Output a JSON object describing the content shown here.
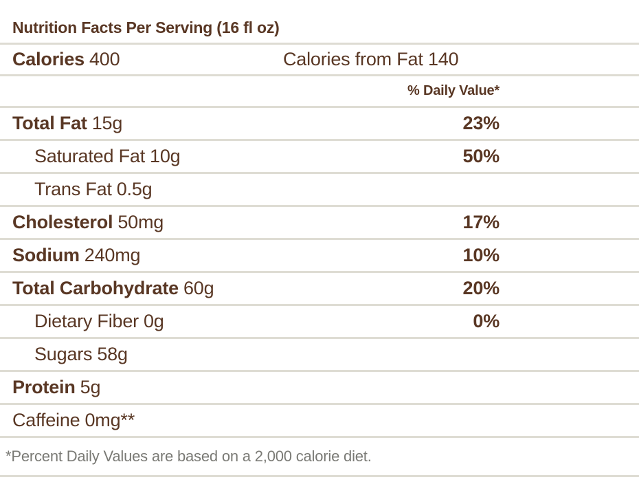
{
  "table": {
    "title": "Nutrition Facts Per Serving (16 fl oz)",
    "calories_label": "Calories",
    "calories_value": "400",
    "calories_from_fat": "Calories from Fat 140",
    "daily_value_header": "% Daily Value*",
    "rows": [
      {
        "label": "Total Fat",
        "amount": "15g",
        "dv": "23%"
      },
      {
        "label": "Saturated Fat",
        "amount": "10g",
        "dv": "50%"
      },
      {
        "label": "Trans Fat",
        "amount": "0.5g",
        "dv": ""
      },
      {
        "label": "Cholesterol",
        "amount": "50mg",
        "dv": "17%"
      },
      {
        "label": "Sodium",
        "amount": "240mg",
        "dv": "10%"
      },
      {
        "label": "Total Carbohydrate",
        "amount": "60g",
        "dv": "20%"
      },
      {
        "label": "Dietary Fiber",
        "amount": "0g",
        "dv": "0%"
      },
      {
        "label": "Sugars",
        "amount": "58g",
        "dv": ""
      },
      {
        "label": "Protein",
        "amount": "5g",
        "dv": ""
      },
      {
        "label": "Caffeine",
        "amount": "0mg**",
        "dv": ""
      }
    ],
    "footnote": "*Percent Daily Values are based on a 2,000 calorie diet."
  },
  "colors": {
    "text_brown": "#593724",
    "divider": "#dedcd3",
    "footnote_gray": "#7a7a75",
    "background": "#ffffff"
  }
}
